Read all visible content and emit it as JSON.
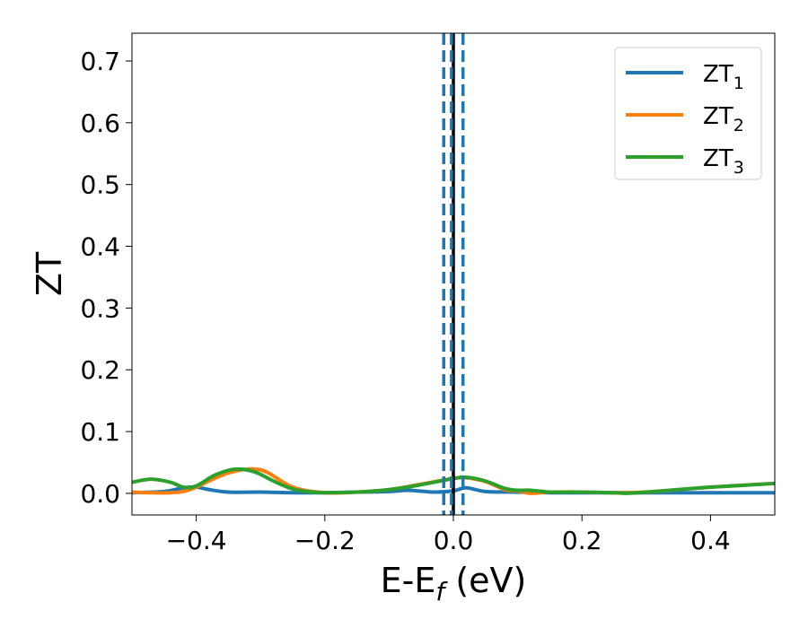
{
  "chart_data": {
    "type": "line",
    "xlabel": "E-E",
    "xlabel_sub": "f",
    "xlabel_unit": " (eV)",
    "ylabel": "ZT",
    "xlim": [
      -0.5,
      0.5
    ],
    "ylim": [
      -0.035,
      0.745
    ],
    "xticks": [
      -0.4,
      -0.2,
      0.0,
      0.2,
      0.4
    ],
    "xtick_labels": [
      "−0.4",
      "−0.2",
      "0.0",
      "0.2",
      "0.4"
    ],
    "yticks": [
      0.0,
      0.1,
      0.2,
      0.3,
      0.4,
      0.5,
      0.6,
      0.7
    ],
    "ytick_labels": [
      "0.0",
      "0.1",
      "0.2",
      "0.3",
      "0.4",
      "0.5",
      "0.6",
      "0.7"
    ],
    "grid": false,
    "legend_position": "top-right",
    "vlines": [
      {
        "x": 0.0,
        "style": "solid",
        "color": "#000000"
      },
      {
        "x": -0.015,
        "style": "dashed",
        "color": "#1f77b4"
      },
      {
        "x": -0.003,
        "style": "dashed",
        "color": "#1f77b4"
      },
      {
        "x": 0.015,
        "style": "dashed",
        "color": "#1f77b4"
      }
    ],
    "series": [
      {
        "name": "ZT",
        "sub": "1",
        "color": "#1f77b4",
        "x": [
          -0.5,
          -0.45,
          -0.42,
          -0.4,
          -0.38,
          -0.35,
          -0.3,
          -0.25,
          -0.2,
          -0.15,
          -0.1,
          -0.07,
          -0.03,
          0.0,
          0.02,
          0.05,
          0.1,
          0.15,
          0.2,
          0.25,
          0.3,
          0.4,
          0.5
        ],
        "y": [
          0.001,
          0.003,
          0.009,
          0.01,
          0.006,
          0.002,
          0.002,
          0.001,
          0.001,
          0.002,
          0.003,
          0.005,
          0.002,
          0.004,
          0.009,
          0.003,
          0.002,
          0.001,
          0.001,
          0.001,
          0.001,
          0.001,
          0.001
        ]
      },
      {
        "name": "ZT",
        "sub": "2",
        "color": "#ff7f0e",
        "x": [
          -0.5,
          -0.47,
          -0.44,
          -0.42,
          -0.4,
          -0.35,
          -0.3,
          -0.25,
          -0.2,
          -0.15,
          -0.1,
          -0.05,
          0.0,
          0.02,
          0.05,
          0.08,
          0.1,
          0.12,
          0.15,
          0.2,
          0.25,
          0.3,
          0.4,
          0.5
        ],
        "y": [
          0.002,
          0.001,
          0.001,
          0.003,
          0.01,
          0.033,
          0.038,
          0.01,
          0.001,
          0.002,
          0.006,
          0.015,
          0.024,
          0.025,
          0.019,
          0.006,
          0.004,
          0.0,
          0.002,
          0.002,
          0.001,
          0.002,
          0.01,
          0.016
        ]
      },
      {
        "name": "ZT",
        "sub": "3",
        "color": "#2ca02c",
        "x": [
          -0.5,
          -0.47,
          -0.44,
          -0.42,
          -0.4,
          -0.37,
          -0.34,
          -0.31,
          -0.28,
          -0.25,
          -0.22,
          -0.2,
          -0.15,
          -0.1,
          -0.05,
          0.0,
          0.02,
          0.05,
          0.08,
          0.1,
          0.12,
          0.15,
          0.18,
          0.2,
          0.25,
          0.27,
          0.3,
          0.35,
          0.4,
          0.45,
          0.5
        ],
        "y": [
          0.018,
          0.023,
          0.018,
          0.01,
          0.012,
          0.03,
          0.039,
          0.035,
          0.02,
          0.007,
          0.002,
          0.001,
          0.002,
          0.006,
          0.014,
          0.024,
          0.026,
          0.02,
          0.008,
          0.005,
          0.005,
          0.002,
          0.002,
          0.002,
          0.001,
          0.0,
          0.002,
          0.006,
          0.01,
          0.013,
          0.016
        ]
      }
    ]
  }
}
